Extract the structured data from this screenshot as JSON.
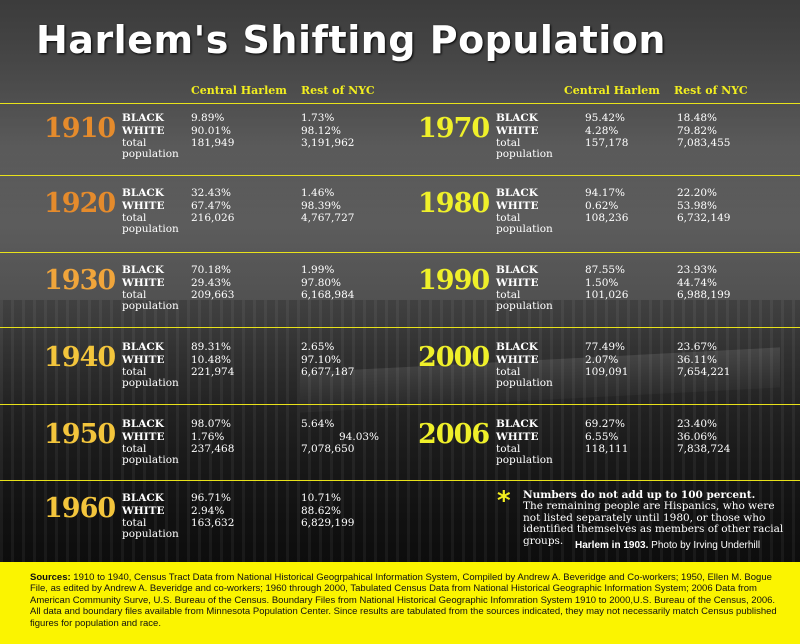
{
  "title": "Harlem's Shifting Population",
  "columns": {
    "central": "Central Harlem",
    "rest": "Rest of NYC"
  },
  "row_labels": {
    "black": "BLACK",
    "white": "WHITE",
    "total1": "total",
    "total2": "population"
  },
  "colors": {
    "accent_yellow": "#f2ee1f",
    "year_orange": "#e58b2c",
    "year_light_orange": "#f0a53b",
    "year_gold": "#f3c53c",
    "year_yellow": "#eff02a"
  },
  "years": [
    {
      "year": "1910",
      "color": "#e58b2c",
      "central": {
        "black": "9.89%",
        "white": "90.01%",
        "total": "181,949"
      },
      "rest": {
        "black": "1.73%",
        "white": "98.12%",
        "total": "3,191,962"
      }
    },
    {
      "year": "1920",
      "color": "#e58b2c",
      "central": {
        "black": "32.43%",
        "white": "67.47%",
        "total": "216,026"
      },
      "rest": {
        "black": "1.46%",
        "white": "98.39%",
        "total": "4,767,727"
      }
    },
    {
      "year": "1930",
      "color": "#f0a53b",
      "central": {
        "black": "70.18%",
        "white": "29.43%",
        "total": "209,663"
      },
      "rest": {
        "black": "1.99%",
        "white": "97.80%",
        "total": "6,168,984"
      }
    },
    {
      "year": "1940",
      "color": "#f3c53c",
      "central": {
        "black": "89.31%",
        "white": "10.48%",
        "total": "221,974"
      },
      "rest": {
        "black": "2.65%",
        "white": "97.10%",
        "total": "6,677,187"
      }
    },
    {
      "year": "1950",
      "color": "#f3c53c",
      "central": {
        "black": "98.07%",
        "white": "1.76%",
        "total": "237,468"
      },
      "rest": {
        "black": "5.64%",
        "white": "94.03%",
        "total": "7,078,650"
      }
    },
    {
      "year": "1960",
      "color": "#f3c53c",
      "central": {
        "black": "96.71%",
        "white": "2.94%",
        "total": "163,632"
      },
      "rest": {
        "black": "10.71%",
        "white": "88.62%",
        "total": "6,829,199"
      }
    },
    {
      "year": "1970",
      "color": "#eff02a",
      "central": {
        "black": "95.42%",
        "white": "4.28%",
        "total": "157,178"
      },
      "rest": {
        "black": "18.48%",
        "white": "79.82%",
        "total": "7,083,455"
      }
    },
    {
      "year": "1980",
      "color": "#eff02a",
      "central": {
        "black": "94.17%",
        "white": "0.62%",
        "total": "108,236"
      },
      "rest": {
        "black": "22.20%",
        "white": "53.98%",
        "total": "6,732,149"
      }
    },
    {
      "year": "1990",
      "color": "#eff02a",
      "central": {
        "black": "87.55%",
        "white": "1.50%",
        "total": "101,026"
      },
      "rest": {
        "black": "23.93%",
        "white": "44.74%",
        "total": "6,988,199"
      }
    },
    {
      "year": "2000",
      "color": "#eff02a",
      "central": {
        "black": "77.49%",
        "white": "2.07%",
        "total": "109,091"
      },
      "rest": {
        "black": "23.67%",
        "white": "36.11%",
        "total": "7,654,221"
      }
    },
    {
      "year": "2006",
      "color": "#eff02a",
      "central": {
        "black": "69.27%",
        "white": "6.55%",
        "total": "118,111"
      },
      "rest": {
        "black": "23.40%",
        "white": "36.06%",
        "total": "7,838,724"
      }
    }
  ],
  "note": {
    "star": "*",
    "bold": "Numbers do not add up to 100 percent.",
    "text": "The remaining people are Hispanics, who were not listed separately until 1980, or those who identified themselves as members of other racial groups."
  },
  "caption": {
    "bold": "Harlem in 1903.",
    "text": " Photo by Irving Underhill"
  },
  "sources": {
    "label": "Sources:",
    "text": "  1910 to 1940, Census Tract Data from National Historical Geogrpahical Information System, Compiled by Andrew A. Beveridge and Co-workers; 1950, Ellen M. Bogue File, as edited by Andrew A. Beveridge and co-workers; 1960 through 2000, Tabulated Census Data from National Historical Geographic Information System;  2006 Data from American Community Surve, U.S. Bureau of the Census.  Boundary Files from National Historical Geographic Infomration System 1910 to 2000,U.S. Bureau of the Census, 2006.  All data and boundary files available from Minnesota Population Center. Since results are tabulated from the sources indicated, they may not necessarily match Census published figures for population and race."
  }
}
